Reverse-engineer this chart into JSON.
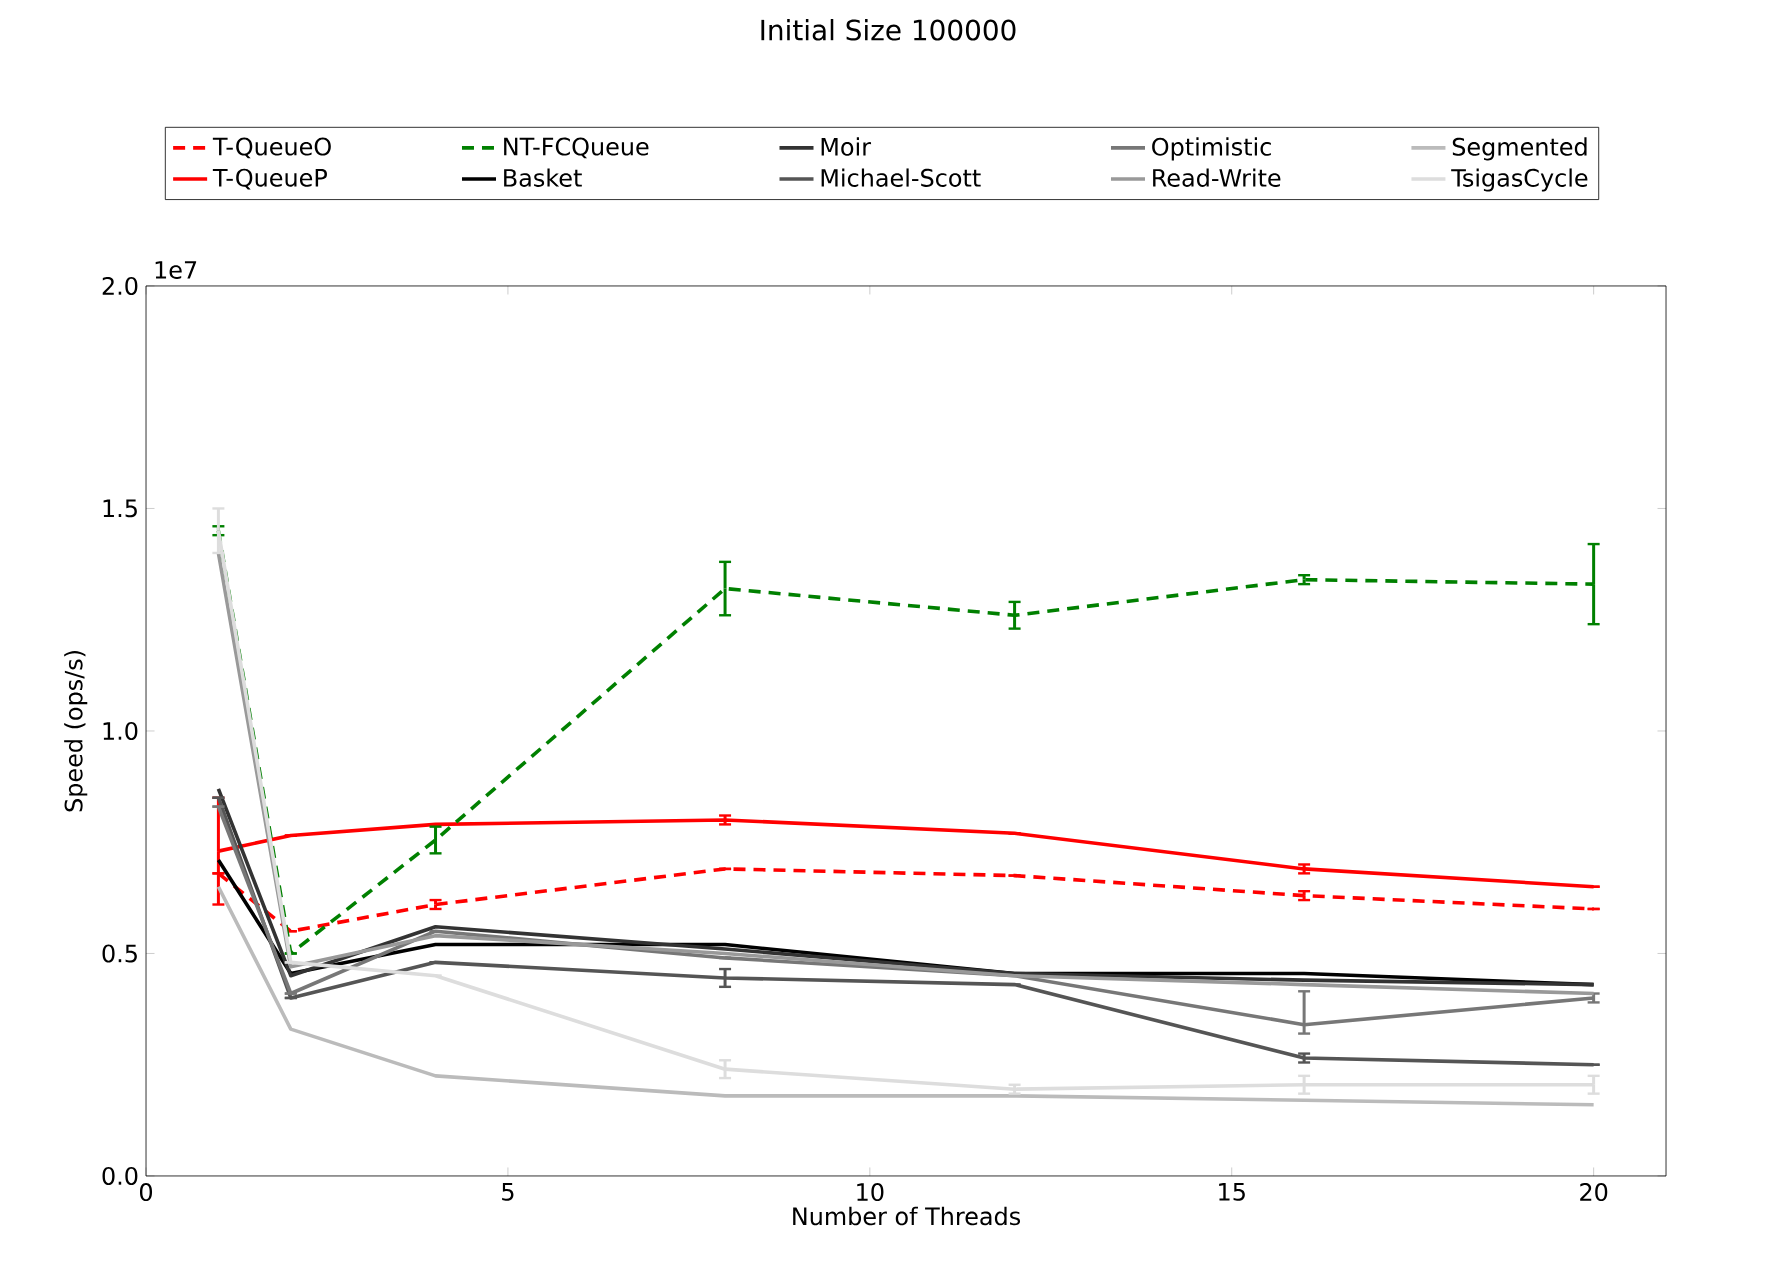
{
  "chart_data": {
    "type": "line",
    "title": "Initial Size 100000",
    "xlabel": "Number of Threads",
    "ylabel": "Speed (ops/s)",
    "annotations": [
      "1e7"
    ],
    "x": [
      1,
      2,
      4,
      8,
      12,
      16,
      20
    ],
    "xlim": [
      0,
      21
    ],
    "xticks": [
      0,
      5,
      10,
      15,
      20
    ],
    "ylim": [
      0,
      2.0
    ],
    "yticks": [
      {
        "value": 0,
        "label": "0.0"
      },
      {
        "value": 0.5,
        "label": "0.5"
      },
      {
        "value": 1.0,
        "label": "1.0"
      },
      {
        "value": 1.5,
        "label": "1.5"
      },
      {
        "value": 2.0,
        "label": "2.0"
      }
    ],
    "legend": "top",
    "marker": "none",
    "grid": false,
    "series": [
      {
        "name": "T-QueueO",
        "color": "#ff0000",
        "line_style": "dashed",
        "values": [
          0.68,
          0.55,
          0.61,
          0.69,
          0.675,
          0.63,
          0.6
        ],
        "errors": [
          null,
          null,
          0.01,
          null,
          null,
          0.01,
          null
        ]
      },
      {
        "name": "T-QueueP",
        "color": "#ff0000",
        "line_style": "solid",
        "values": [
          0.73,
          0.765,
          0.79,
          0.8,
          0.77,
          0.69,
          0.65
        ],
        "errors": [
          [
            0.61,
            0.85
          ],
          null,
          null,
          0.01,
          null,
          0.01,
          null
        ]
      },
      {
        "name": "NT-FCQueue",
        "color": "#008000",
        "line_style": "dashed",
        "values": [
          1.45,
          0.5,
          0.755,
          1.32,
          1.26,
          1.34,
          1.33
        ],
        "errors": [
          0.01,
          null,
          0.03,
          0.06,
          0.03,
          0.01,
          0.09
        ]
      },
      {
        "name": "Basket",
        "color": "#000000",
        "line_style": "solid",
        "values": [
          0.71,
          0.455,
          0.52,
          0.52,
          0.455,
          0.455,
          0.43
        ]
      },
      {
        "name": "Moir",
        "color": "#333333",
        "line_style": "solid",
        "values": [
          0.87,
          0.45,
          0.56,
          0.51,
          0.455,
          0.44,
          0.43
        ]
      },
      {
        "name": "Michael-Scott",
        "color": "#555555",
        "line_style": "solid",
        "values": [
          0.85,
          0.4,
          0.48,
          0.445,
          0.43,
          0.265,
          0.25
        ],
        "errors": [
          null,
          null,
          null,
          0.02,
          null,
          0.01,
          null
        ]
      },
      {
        "name": "Optimistic",
        "color": "#777777",
        "line_style": "solid",
        "values": [
          0.83,
          0.41,
          0.55,
          0.49,
          0.45,
          0.34,
          0.4
        ],
        "errors": [
          null,
          null,
          null,
          null,
          null,
          [
            0.32,
            0.415
          ],
          0.01
        ]
      },
      {
        "name": "Read-Write",
        "color": "#999999",
        "line_style": "solid",
        "values": [
          1.4,
          0.47,
          0.54,
          0.5,
          0.45,
          0.43,
          0.41
        ]
      },
      {
        "name": "Segmented",
        "color": "#bbbbbb",
        "line_style": "solid",
        "values": [
          0.65,
          0.33,
          0.225,
          0.18,
          0.18,
          0.17,
          0.16
        ]
      },
      {
        "name": "TsigasCycle",
        "color": "#dddddd",
        "line_style": "solid",
        "values": [
          1.45,
          0.48,
          0.45,
          0.24,
          0.195,
          0.205,
          0.205
        ],
        "errors": [
          0.05,
          null,
          null,
          0.02,
          0.01,
          0.02,
          0.02
        ]
      }
    ]
  }
}
